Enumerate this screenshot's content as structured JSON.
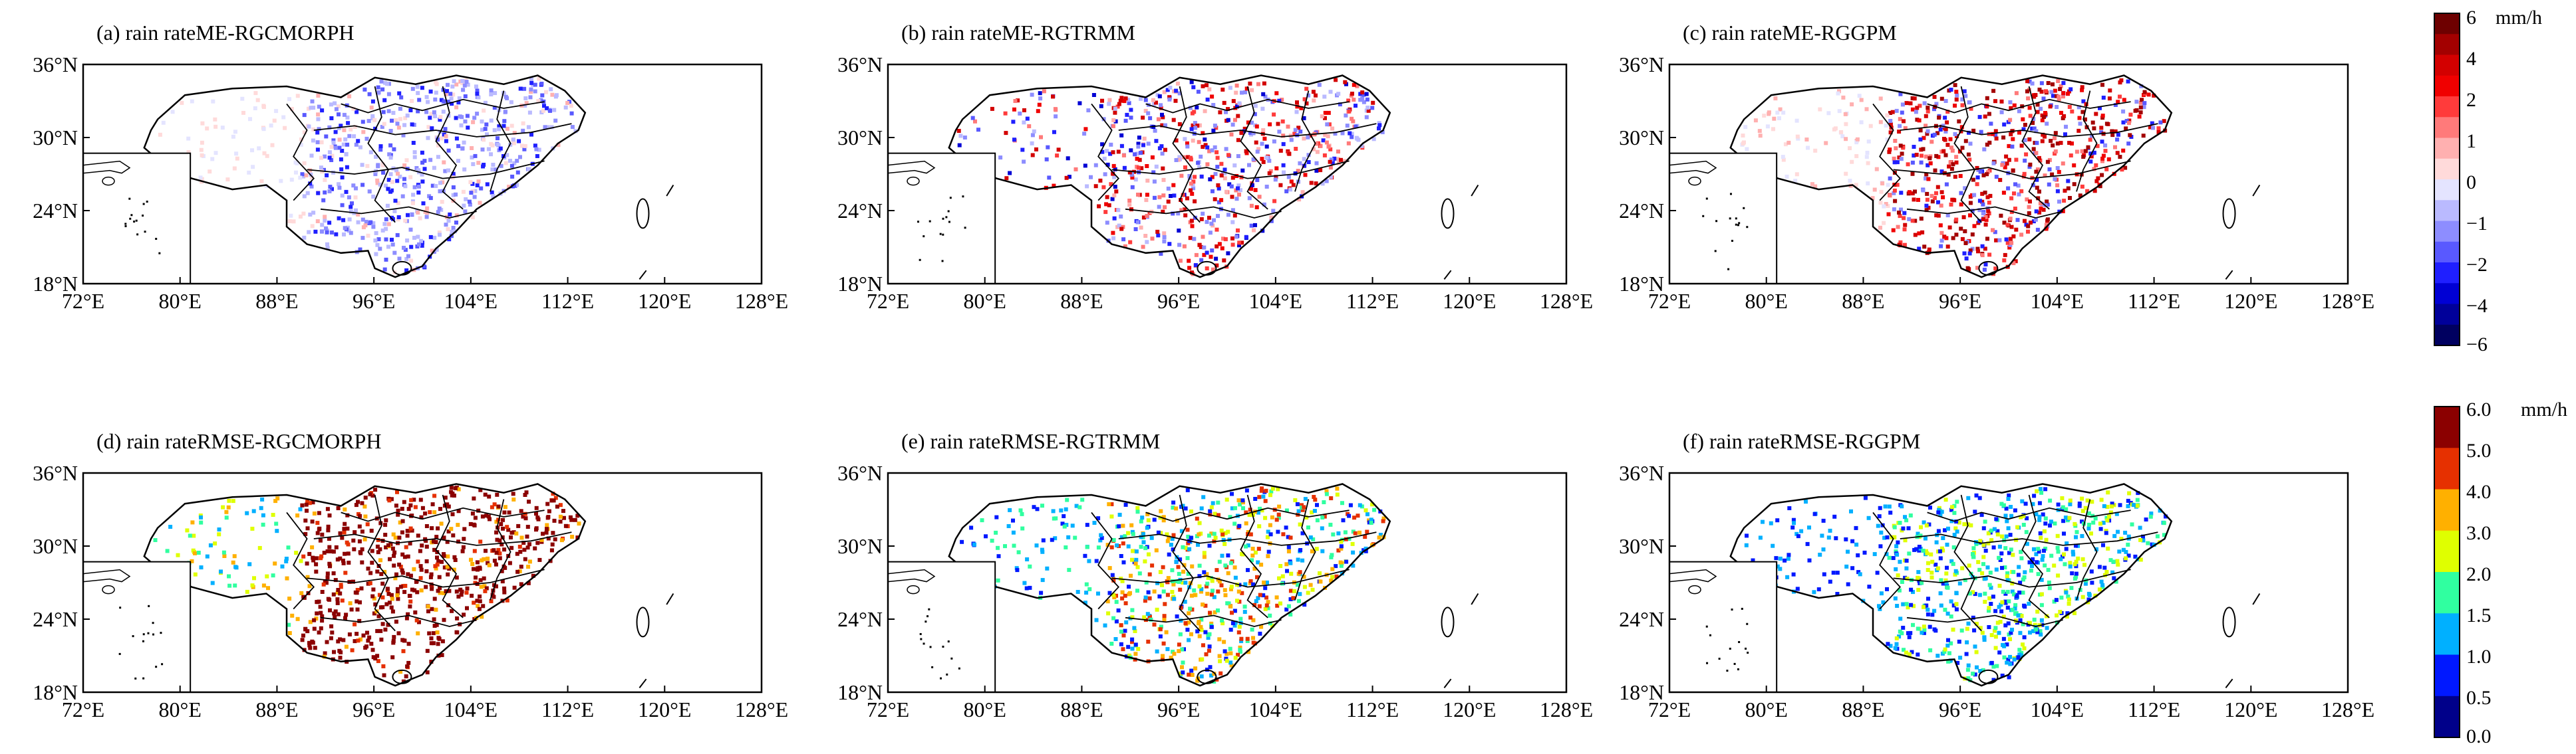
{
  "figure": {
    "lat_ticks": [
      "36°N",
      "30°N",
      "24°N",
      "18°N"
    ],
    "lon_ticks": [
      "72°E",
      "80°E",
      "88°E",
      "96°E",
      "104°E",
      "112°E",
      "120°E",
      "128°E"
    ],
    "panels": [
      {
        "id": "a",
        "title": "(a) rain rateME-RGCMORPH",
        "metric": "ME",
        "pattern": "bias-neg"
      },
      {
        "id": "b",
        "title": "(b) rain rateME-RGTRMM",
        "metric": "ME",
        "pattern": "bias-mix"
      },
      {
        "id": "c",
        "title": "(c) rain rateME-RGGPM",
        "metric": "ME",
        "pattern": "bias-pos"
      },
      {
        "id": "d",
        "title": "(d) rain rateRMSE-RGCMORPH",
        "metric": "RMSE",
        "pattern": "rmse-high"
      },
      {
        "id": "e",
        "title": "(e) rain rateRMSE-RGTRMM",
        "metric": "RMSE",
        "pattern": "rmse-mid"
      },
      {
        "id": "f",
        "title": "(f) rain rateRMSE-RGGPM",
        "metric": "RMSE",
        "pattern": "rmse-low"
      }
    ],
    "colorbars": {
      "me": {
        "unit": "mm/h",
        "tick_labels": [
          "6",
          "4",
          "2",
          "1",
          "0",
          "−1",
          "−2",
          "−4",
          "−6"
        ],
        "colors": [
          "#6e0000",
          "#a30000",
          "#d30000",
          "#f00000",
          "#ff3b3b",
          "#ff7a7a",
          "#ffb0b0",
          "#ffdada",
          "#e4e4ff",
          "#babaff",
          "#8d8dff",
          "#5959ff",
          "#1f1fff",
          "#0000d4",
          "#00009a",
          "#000060"
        ]
      },
      "rmse": {
        "unit": "mm/h",
        "tick_labels": [
          "6.0",
          "5.0",
          "4.0",
          "3.0",
          "2.0",
          "1.5",
          "1.0",
          "0.5",
          "0.0"
        ],
        "colors": [
          "#8b0000",
          "#e63000",
          "#ffb000",
          "#dfff00",
          "#30ffa0",
          "#00b0ff",
          "#0018ff",
          "#00008a"
        ]
      }
    }
  }
}
